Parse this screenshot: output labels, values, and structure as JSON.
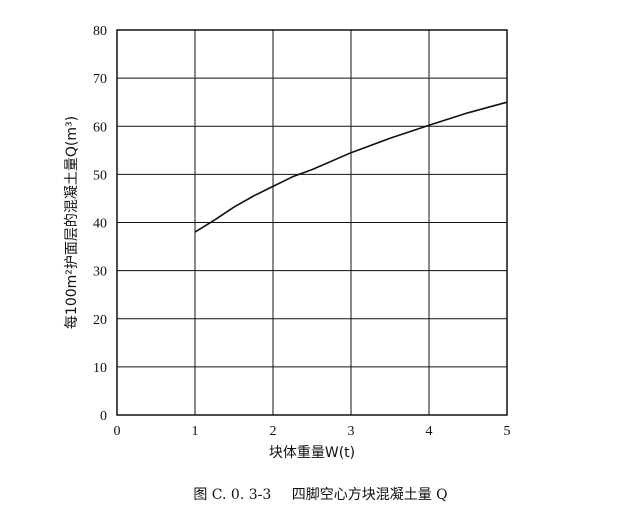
{
  "chart_data": {
    "type": "line",
    "xlabel": "块体重量W(t)",
    "ylabel": "每100m²护面层的混凝土量Q(m³)",
    "xlim": [
      0,
      5
    ],
    "ylim": [
      0,
      80
    ],
    "xticks": [
      0,
      1,
      2,
      3,
      4,
      5
    ],
    "yticks": [
      0,
      10,
      20,
      30,
      40,
      50,
      60,
      70,
      80
    ],
    "grid": true,
    "series": [
      {
        "x": [
          1.0,
          1.25,
          1.5,
          1.75,
          2.0,
          2.25,
          2.5,
          3.0,
          3.5,
          4.0,
          4.5,
          5.0
        ],
        "y": [
          38,
          40.5,
          43.2,
          45.5,
          47.5,
          49.5,
          51.0,
          54.5,
          57.5,
          60.2,
          62.8,
          65.0
        ]
      }
    ]
  },
  "caption": {
    "number": "图 C. 0. 3-3",
    "text": "四脚空心方块混凝土量 Q"
  }
}
